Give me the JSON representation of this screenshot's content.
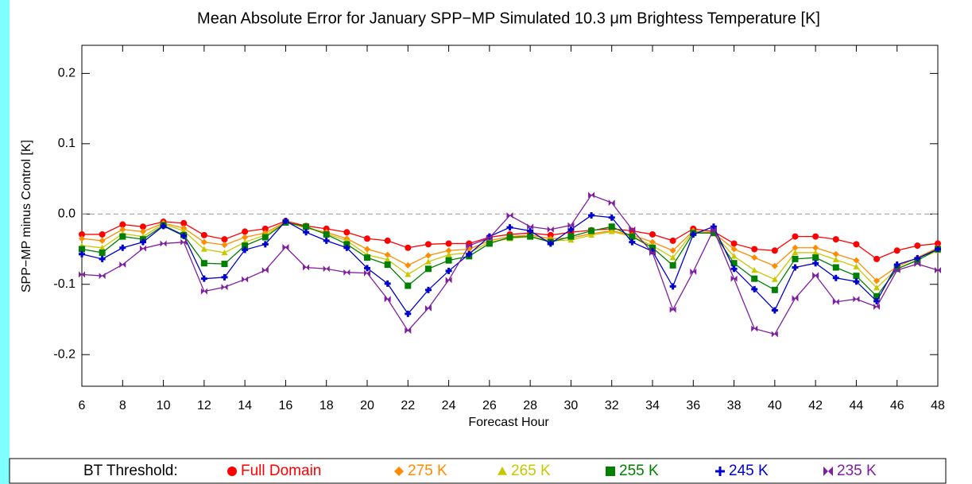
{
  "chart_data": {
    "type": "line",
    "title": "Mean Absolute Error for January SPP−MP Simulated 10.3 μm Brightess Temperature [K]",
    "x_label": "Forecast Hour",
    "y_label": "SPP−MP minus Control [K]",
    "x": [
      6,
      7,
      8,
      9,
      10,
      11,
      12,
      13,
      14,
      15,
      16,
      17,
      18,
      19,
      20,
      21,
      22,
      23,
      24,
      25,
      26,
      27,
      28,
      29,
      30,
      31,
      32,
      33,
      34,
      35,
      36,
      37,
      38,
      39,
      40,
      41,
      42,
      43,
      44,
      45,
      46,
      47,
      48
    ],
    "xlim": [
      6,
      48
    ],
    "xticks": [
      6,
      8,
      10,
      12,
      14,
      16,
      18,
      20,
      22,
      24,
      26,
      28,
      30,
      32,
      34,
      36,
      38,
      40,
      42,
      44,
      46,
      48
    ],
    "ylim": [
      -0.245,
      0.24
    ],
    "yticks": [
      -0.2,
      -0.1,
      {
        "value": 0,
        "label": "0.0"
      },
      0.1,
      0.2
    ],
    "zero_line": true,
    "legend_title": "BT Threshold:",
    "legend_position": "bottom",
    "series": [
      {
        "name": "Full Domain",
        "color": "#ff0000",
        "marker": "circle",
        "values": [
          -0.029,
          -0.029,
          -0.015,
          -0.018,
          -0.011,
          -0.013,
          -0.03,
          -0.036,
          -0.025,
          -0.021,
          -0.01,
          -0.017,
          -0.021,
          -0.026,
          -0.035,
          -0.038,
          -0.048,
          -0.043,
          -0.042,
          -0.042,
          -0.033,
          -0.029,
          -0.027,
          -0.03,
          -0.026,
          -0.023,
          -0.021,
          -0.024,
          -0.029,
          -0.038,
          -0.021,
          -0.025,
          -0.042,
          -0.05,
          -0.052,
          -0.032,
          -0.032,
          -0.036,
          -0.043,
          -0.064,
          -0.052,
          -0.045,
          -0.042
        ]
      },
      {
        "name": "275 K",
        "color": "#ff8c00",
        "marker": "diamond",
        "values": [
          -0.035,
          -0.038,
          -0.022,
          -0.025,
          -0.013,
          -0.02,
          -0.04,
          -0.044,
          -0.033,
          -0.027,
          -0.011,
          -0.02,
          -0.026,
          -0.035,
          -0.05,
          -0.058,
          -0.073,
          -0.059,
          -0.052,
          -0.05,
          -0.038,
          -0.032,
          -0.03,
          -0.035,
          -0.034,
          -0.028,
          -0.024,
          -0.03,
          -0.04,
          -0.052,
          -0.024,
          -0.027,
          -0.05,
          -0.062,
          -0.074,
          -0.048,
          -0.048,
          -0.057,
          -0.066,
          -0.095,
          -0.075,
          -0.062,
          -0.048
        ]
      },
      {
        "name": "265 K",
        "color": "#c8c800",
        "marker": "triangle",
        "values": [
          -0.045,
          -0.048,
          -0.028,
          -0.032,
          -0.014,
          -0.024,
          -0.05,
          -0.055,
          -0.04,
          -0.03,
          -0.012,
          -0.018,
          -0.028,
          -0.038,
          -0.058,
          -0.065,
          -0.086,
          -0.068,
          -0.058,
          -0.055,
          -0.04,
          -0.035,
          -0.032,
          -0.038,
          -0.037,
          -0.03,
          -0.025,
          -0.032,
          -0.045,
          -0.062,
          -0.025,
          -0.028,
          -0.06,
          -0.08,
          -0.093,
          -0.055,
          -0.055,
          -0.065,
          -0.075,
          -0.105,
          -0.078,
          -0.065,
          -0.052
        ]
      },
      {
        "name": "255 K",
        "color": "#008000",
        "marker": "square",
        "values": [
          -0.05,
          -0.055,
          -0.032,
          -0.036,
          -0.016,
          -0.03,
          -0.07,
          -0.071,
          -0.045,
          -0.033,
          -0.012,
          -0.018,
          -0.029,
          -0.043,
          -0.062,
          -0.072,
          -0.102,
          -0.078,
          -0.066,
          -0.06,
          -0.042,
          -0.033,
          -0.032,
          -0.04,
          -0.032,
          -0.024,
          -0.018,
          -0.032,
          -0.048,
          -0.073,
          -0.027,
          -0.027,
          -0.07,
          -0.092,
          -0.108,
          -0.064,
          -0.062,
          -0.076,
          -0.088,
          -0.117,
          -0.078,
          -0.066,
          -0.05
        ]
      },
      {
        "name": "245 K",
        "color": "#0000cc",
        "marker": "plus",
        "values": [
          -0.057,
          -0.064,
          -0.048,
          -0.04,
          -0.017,
          -0.031,
          -0.092,
          -0.09,
          -0.051,
          -0.043,
          -0.01,
          -0.026,
          -0.038,
          -0.048,
          -0.077,
          -0.099,
          -0.142,
          -0.108,
          -0.081,
          -0.057,
          -0.032,
          -0.019,
          -0.024,
          -0.042,
          -0.022,
          -0.002,
          -0.005,
          -0.04,
          -0.053,
          -0.103,
          -0.029,
          -0.018,
          -0.078,
          -0.107,
          -0.137,
          -0.076,
          -0.07,
          -0.091,
          -0.096,
          -0.124,
          -0.072,
          -0.063,
          -0.05
        ]
      },
      {
        "name": "235 K",
        "color": "#7f1f9f",
        "marker": "bowtie",
        "values": [
          -0.086,
          -0.088,
          -0.072,
          -0.049,
          -0.042,
          -0.04,
          -0.11,
          -0.104,
          -0.093,
          -0.08,
          -0.047,
          -0.076,
          -0.078,
          -0.083,
          -0.084,
          -0.121,
          -0.166,
          -0.134,
          -0.094,
          -0.045,
          -0.034,
          -0.002,
          -0.018,
          -0.022,
          -0.016,
          0.027,
          0.016,
          -0.022,
          -0.055,
          -0.136,
          -0.082,
          -0.022,
          -0.092,
          -0.163,
          -0.171,
          -0.12,
          -0.087,
          -0.125,
          -0.121,
          -0.132,
          -0.08,
          -0.071,
          -0.08
        ]
      }
    ]
  }
}
